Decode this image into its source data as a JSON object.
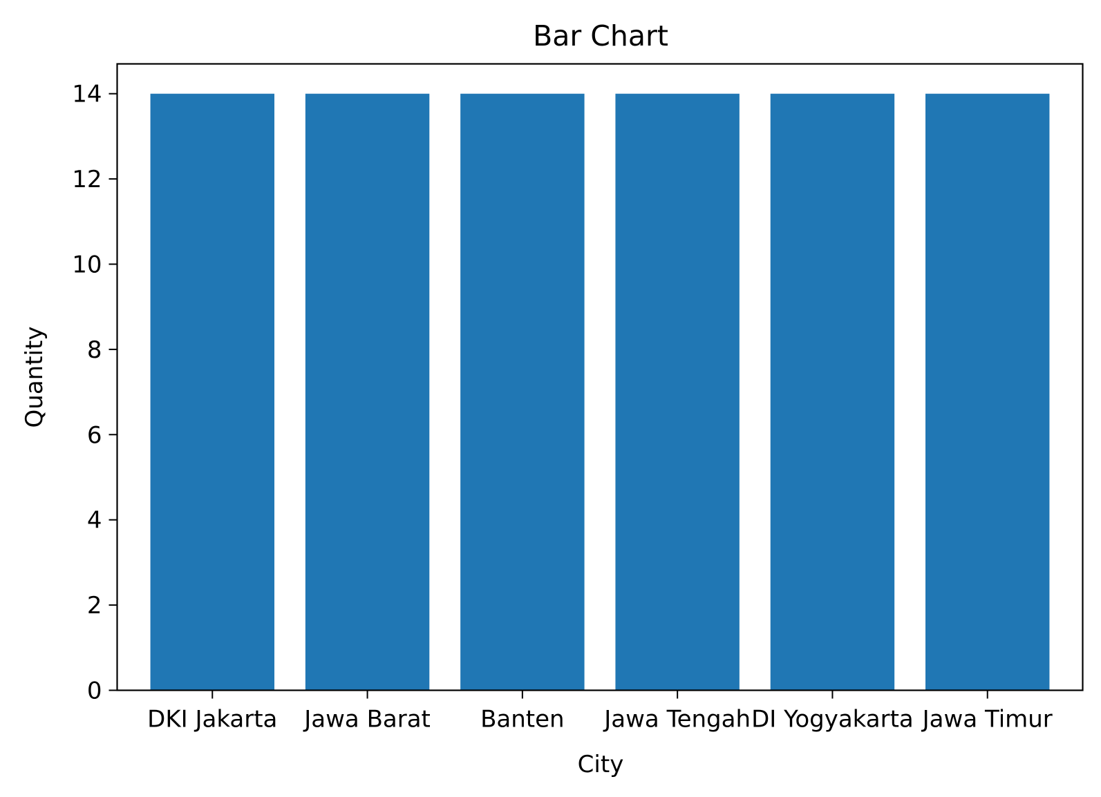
{
  "chart_data": {
    "type": "bar",
    "title": "Bar Chart",
    "xlabel": "City",
    "ylabel": "Quantity",
    "categories": [
      "DKI Jakarta",
      "Jawa Barat",
      "Banten",
      "Jawa Tengah",
      "DI Yogyakarta",
      "Jawa Timur"
    ],
    "values": [
      14,
      14,
      14,
      14,
      14,
      14
    ],
    "ylim": [
      0,
      14.7
    ],
    "yticks": [
      0,
      2,
      4,
      6,
      8,
      10,
      12,
      14
    ],
    "bar_color": "#2077b4",
    "grid": false,
    "legend": "none"
  }
}
